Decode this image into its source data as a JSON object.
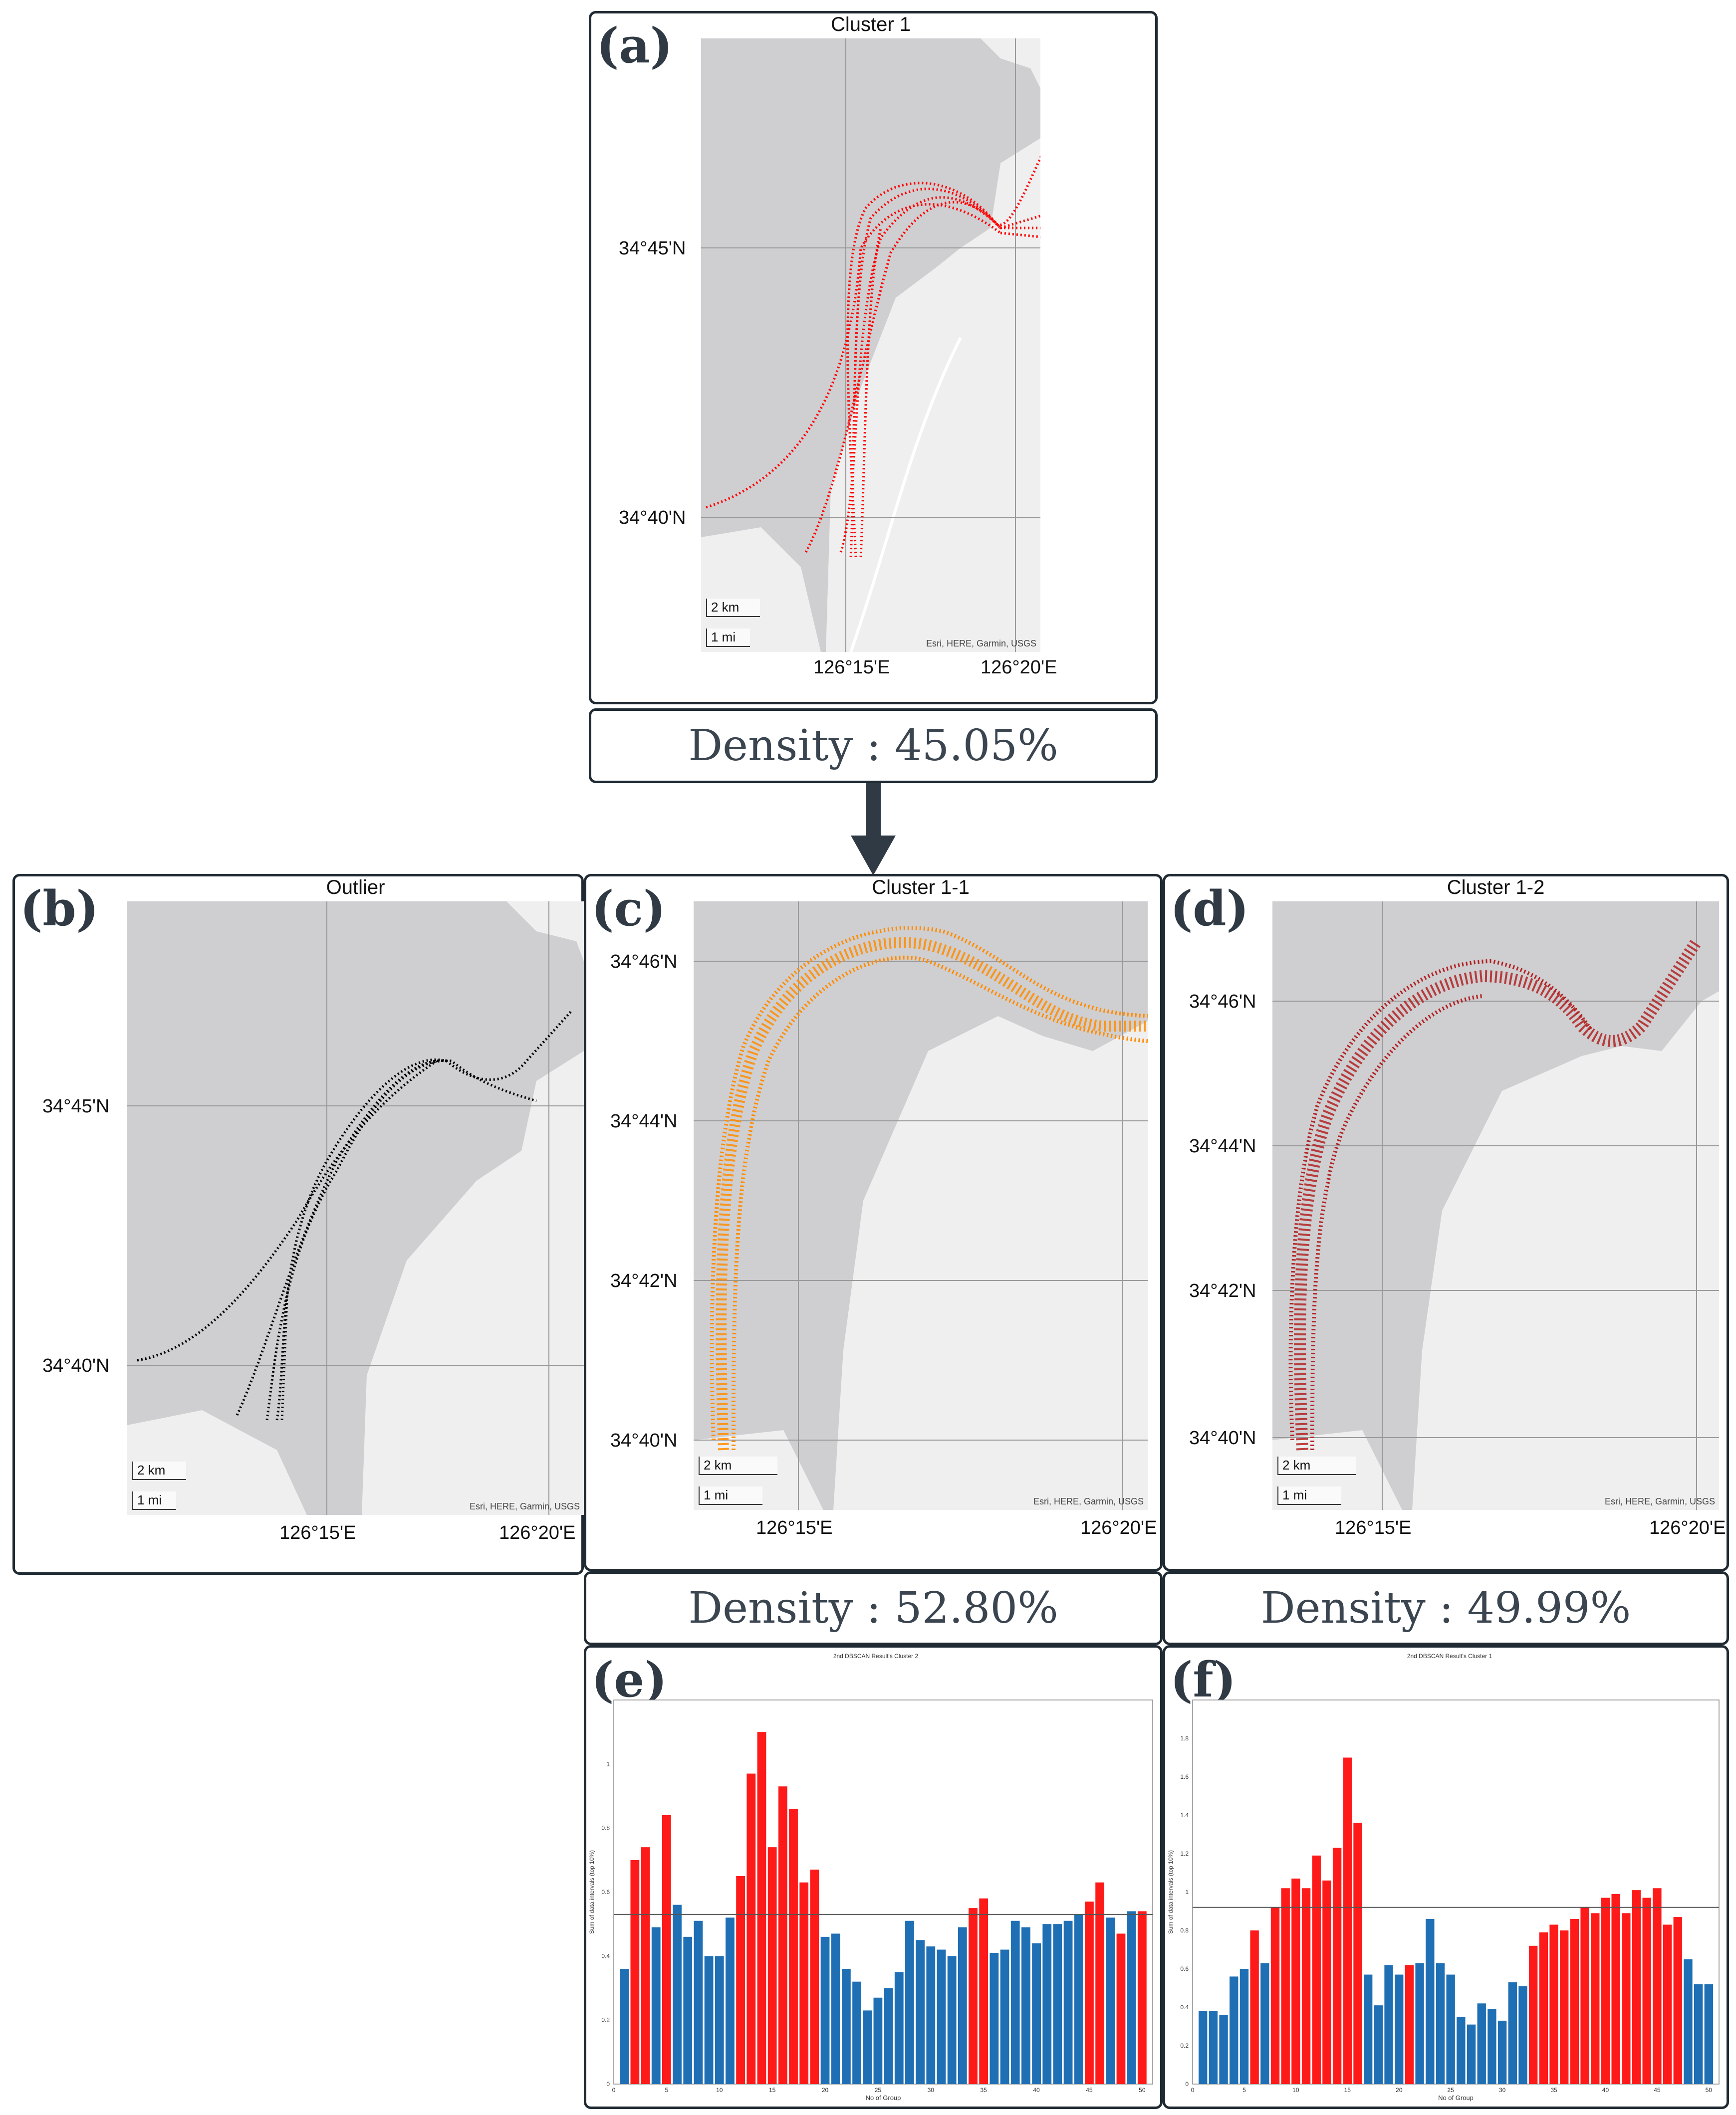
{
  "panels": {
    "a": {
      "letter": "(a)",
      "title": "Cluster 1",
      "lat_labels": [
        "34°45'N",
        "34°40'N"
      ],
      "lon_labels": [
        "126°15'E",
        "126°20'E"
      ],
      "scale_km": "2 km",
      "scale_mi": "1 mi",
      "attribution": "Esri, HERE, Garmin, USGS",
      "track_color": "#ff0000"
    },
    "b": {
      "letter": "(b)",
      "title": "Outlier",
      "lat_labels": [
        "34°45'N",
        "34°40'N"
      ],
      "lon_labels": [
        "126°15'E",
        "126°20'E"
      ],
      "scale_km": "2 km",
      "scale_mi": "1 mi",
      "attribution": "Esri, HERE, Garmin, USGS",
      "track_color": "#000000"
    },
    "c": {
      "letter": "(c)",
      "title": "Cluster 1-1",
      "lat_labels": [
        "34°46'N",
        "34°44'N",
        "34°42'N",
        "34°40'N"
      ],
      "lon_labels": [
        "126°15'E",
        "126°20'E"
      ],
      "scale_km": "2 km",
      "scale_mi": "1 mi",
      "attribution": "Esri, HERE, Garmin, USGS",
      "track_color": "#ff8c00"
    },
    "d": {
      "letter": "(d)",
      "title": "Cluster 1-2",
      "lat_labels": [
        "34°46'N",
        "34°44'N",
        "34°42'N",
        "34°40'N"
      ],
      "lon_labels": [
        "126°15'E",
        "126°20'E"
      ],
      "scale_km": "2 km",
      "scale_mi": "1 mi",
      "attribution": "Esri, HERE, Garmin, USGS",
      "track_color": "#b22222"
    }
  },
  "densities": {
    "a": "Density : 45.05%",
    "c": "Density : 52.80%",
    "d": "Density : 49.99%"
  },
  "chart_data": [
    {
      "letter": "(e)",
      "type": "bar",
      "title": "2nd DBSCAN Result's Cluster 2",
      "xlabel": "No of Group",
      "ylabel": "Sum of data intervals (top 10%)",
      "xlim": [
        0,
        50
      ],
      "ylim": [
        0,
        1.2
      ],
      "threshold": 0.53,
      "x": [
        1,
        2,
        3,
        4,
        5,
        6,
        7,
        8,
        9,
        10,
        11,
        12,
        13,
        14,
        15,
        16,
        17,
        18,
        19,
        20,
        21,
        22,
        23,
        24,
        25,
        26,
        27,
        28,
        29,
        30,
        31,
        32,
        33,
        34,
        35,
        36,
        37,
        38,
        39,
        40,
        41,
        42,
        43,
        44,
        45,
        46,
        47,
        48,
        49,
        50
      ],
      "values": [
        0.36,
        0.7,
        0.74,
        0.49,
        0.84,
        0.56,
        0.46,
        0.51,
        0.4,
        0.4,
        0.52,
        0.65,
        0.97,
        1.1,
        0.74,
        0.93,
        0.86,
        0.63,
        0.67,
        0.46,
        0.47,
        0.36,
        0.32,
        0.23,
        0.27,
        0.3,
        0.35,
        0.51,
        0.45,
        0.43,
        0.42,
        0.4,
        0.49,
        0.55,
        0.58,
        0.41,
        0.42,
        0.51,
        0.49,
        0.44,
        0.5,
        0.5,
        0.51,
        0.53,
        0.57,
        0.63,
        0.52,
        0.47,
        0.54,
        0.54
      ],
      "highlight": [
        2,
        3,
        5,
        12,
        13,
        14,
        15,
        16,
        17,
        18,
        19,
        34,
        35,
        45,
        46,
        48,
        50
      ],
      "y_ticks": [
        "0",
        "0.2",
        "0.4",
        "0.6",
        "0.8",
        "1"
      ],
      "x_ticks": [
        "0",
        "5",
        "10",
        "15",
        "20",
        "25",
        "30",
        "35",
        "40",
        "45",
        "50"
      ]
    },
    {
      "letter": "(f)",
      "type": "bar",
      "title": "2nd DBSCAN Result's Cluster 1",
      "xlabel": "No of Group",
      "ylabel": "Sum of data intervals (top 10%)",
      "xlim": [
        0,
        50
      ],
      "ylim": [
        0,
        2.0
      ],
      "threshold": 0.92,
      "x": [
        1,
        2,
        3,
        4,
        5,
        6,
        7,
        8,
        9,
        10,
        11,
        12,
        13,
        14,
        15,
        16,
        17,
        18,
        19,
        20,
        21,
        22,
        23,
        24,
        25,
        26,
        27,
        28,
        29,
        30,
        31,
        32,
        33,
        34,
        35,
        36,
        37,
        38,
        39,
        40,
        41,
        42,
        43,
        44,
        45,
        46,
        47,
        48,
        49,
        50
      ],
      "values": [
        0.38,
        0.38,
        0.36,
        0.56,
        0.6,
        0.8,
        0.63,
        0.92,
        1.02,
        1.07,
        1.02,
        1.19,
        1.06,
        1.23,
        1.7,
        1.36,
        0.57,
        0.41,
        0.62,
        0.57,
        0.62,
        0.63,
        0.86,
        0.63,
        0.57,
        0.35,
        0.31,
        0.42,
        0.39,
        0.33,
        0.53,
        0.51,
        0.72,
        0.79,
        0.83,
        0.8,
        0.86,
        0.92,
        0.89,
        0.97,
        0.99,
        0.89,
        1.01,
        0.97,
        1.02,
        0.83,
        0.87,
        0.65,
        0.52,
        0.52
      ],
      "highlight": [
        6,
        8,
        9,
        10,
        11,
        12,
        13,
        14,
        15,
        16,
        21,
        33,
        34,
        35,
        36,
        37,
        38,
        39,
        40,
        41,
        42,
        43,
        44,
        45,
        46,
        47
      ],
      "y_ticks": [
        "0",
        "0.2",
        "0.4",
        "0.6",
        "0.8",
        "1",
        "1.2",
        "1.4",
        "1.6",
        "1.8"
      ],
      "x_ticks": [
        "0",
        "5",
        "10",
        "15",
        "20",
        "25",
        "30",
        "35",
        "40",
        "45",
        "50"
      ]
    }
  ],
  "colors": {
    "red": "#ff1a1a",
    "blue": "#1f6fb5",
    "frame": "#1f2a33",
    "land": "#efefef",
    "water": "#cfcfd2"
  }
}
